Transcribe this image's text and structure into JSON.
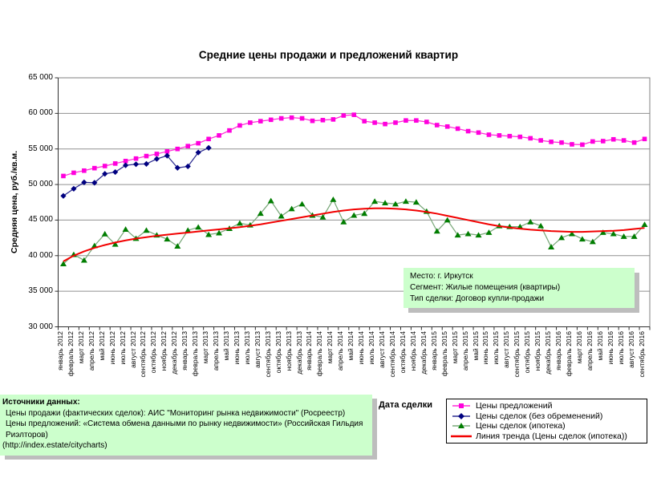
{
  "title": "Средние цены продажи и предложений квартир",
  "colors": {
    "background": "#ffffff",
    "gridline": "#909090",
    "plot_border": "#808080",
    "axis": "#303030",
    "box_fill": "#ccffcc",
    "box_shadow": "#bdbdbd",
    "offers": "#ff00dd",
    "deals_clean": "#000080",
    "deals_mortgage": "#007d00",
    "trend": "#f20000"
  },
  "y_axis": {
    "title": "Средняя цена, руб./кв.м.",
    "ticks": [
      {
        "label": "65 000",
        "value": 65000
      },
      {
        "label": "60 000",
        "value": 60000
      },
      {
        "label": "55 000",
        "value": 55000
      },
      {
        "label": "50 000",
        "value": 50000
      },
      {
        "label": "45 000",
        "value": 45000
      },
      {
        "label": "40 000",
        "value": 40000
      },
      {
        "label": "35 000",
        "value": 35000
      },
      {
        "label": "30 000",
        "value": 30000
      }
    ]
  },
  "x_axis": {
    "title": "Дата сделки"
  },
  "annotation": {
    "lines": [
      "Место: г. Иркутск",
      "Сегмент: Жилые помещения (квартиры)",
      "Тип сделки: Договор купли-продажи"
    ]
  },
  "sources": {
    "heading": "Источники данных:",
    "lines": [
      "Цены продажи (фактических сделок): АИС \"Мониторинг рынка недвижимости\" (Росреестр)",
      "Цены предложений: «Система обмена данными по рынку недвижимости» (Российская Гильдия Риэлторов)",
      "(http://index.estate/citycharts)"
    ]
  },
  "chart_data": {
    "type": "line",
    "title": "Средние цены продажи и предложений квартир",
    "xlabel": "Дата сделки",
    "ylabel": "Средняя цена, руб./кв.м.",
    "ylim": [
      30000,
      65000
    ],
    "grid": true,
    "legend_position": "bottom-right",
    "categories": [
      "январь 2012",
      "февраль 2012",
      "март 2012",
      "апрель 2012",
      "май 2012",
      "июнь 2012",
      "июль 2012",
      "август 2012",
      "сентябрь 2012",
      "октябрь 2012",
      "ноябрь 2012",
      "декабрь 2012",
      "январь 2013",
      "февраль 2013",
      "март 2013",
      "апрель 2013",
      "май 2013",
      "июнь 2013",
      "июль 2013",
      "август 2013",
      "сентябрь 2013",
      "октябрь 2013",
      "ноябрь 2013",
      "декабрь 2013",
      "январь 2014",
      "февраль 2014",
      "март 2014",
      "апрель 2014",
      "май 2014",
      "июнь 2014",
      "июль 2014",
      "август 2014",
      "сентябрь 2014",
      "октябрь 2014",
      "ноябрь 2014",
      "декабрь 2014",
      "январь 2015",
      "февраль 2015",
      "март 2015",
      "апрель 2015",
      "май 2015",
      "июнь 2015",
      "июль 2015",
      "август 2015",
      "сентябрь 2015",
      "октябрь 2015",
      "ноябрь 2015",
      "декабрь 2015",
      "январь 2016",
      "февраль 2016",
      "март 2016",
      "апрель 2016",
      "май 2016",
      "июнь 2016",
      "июль 2016",
      "август 2016",
      "сентябрь 2016"
    ],
    "series": [
      {
        "name": "Цены предложений",
        "marker": "square",
        "color": "#ff00dd",
        "line_color": "#ff2bd6",
        "line_width": 1.25,
        "values": [
          51200,
          51650,
          51950,
          52300,
          52600,
          52950,
          53300,
          53650,
          54000,
          54300,
          54650,
          55000,
          55400,
          55800,
          56400,
          56900,
          57600,
          58300,
          58700,
          58900,
          59100,
          59300,
          59400,
          59300,
          58950,
          59050,
          59150,
          59700,
          59800,
          58900,
          58700,
          58500,
          58700,
          59000,
          59000,
          58800,
          58350,
          58150,
          57850,
          57500,
          57300,
          57000,
          56900,
          56800,
          56700,
          56500,
          56200,
          56000,
          55900,
          55650,
          55600,
          56050,
          56100,
          56350,
          56200,
          55900,
          56400
        ]
      },
      {
        "name": "Цены сделок (без обременений)",
        "marker": "diamond",
        "color": "#000080",
        "line_color": "#2b2b90",
        "line_width": 1.25,
        "values": [
          48400,
          49400,
          50300,
          50250,
          51500,
          51750,
          52700,
          52850,
          52900,
          53600,
          54050,
          52350,
          52550,
          54500,
          55150
        ]
      },
      {
        "name": "Цены сделок (ипотека)",
        "marker": "triangle",
        "color": "#007d00",
        "line_color": "#7aa87a",
        "line_width": 1.25,
        "values": [
          38850,
          40150,
          39350,
          41400,
          43050,
          41590,
          43700,
          42410,
          43560,
          42890,
          42330,
          41330,
          43560,
          44000,
          42960,
          43190,
          43810,
          44560,
          44300,
          45930,
          47700,
          45560,
          46590,
          47260,
          45670,
          45410,
          47890,
          44740,
          45670,
          45925,
          47630,
          47410,
          47260,
          47630,
          47520,
          46220,
          43440,
          45000,
          42890,
          43070,
          42890,
          43260,
          44190,
          44070,
          44070,
          44740,
          44190,
          41220,
          42520,
          43070,
          42330,
          41960,
          43260,
          43070,
          42700,
          42700,
          44370
        ]
      },
      {
        "name": "Линия тренда (Цены сделок (ипотека))",
        "marker": "none",
        "color": "#f20000",
        "line_color": "#f20000",
        "line_width": 2,
        "values": [
          39200,
          40000,
          40600,
          41100,
          41500,
          41850,
          42150,
          42400,
          42600,
          42800,
          42950,
          43100,
          43250,
          43400,
          43550,
          43700,
          43850,
          44000,
          44200,
          44400,
          44650,
          44900,
          45150,
          45400,
          45650,
          45900,
          46150,
          46350,
          46500,
          46600,
          46650,
          46650,
          46600,
          46500,
          46350,
          46150,
          45900,
          45600,
          45300,
          45000,
          44700,
          44400,
          44150,
          43950,
          43800,
          43650,
          43550,
          43450,
          43400,
          43350,
          43350,
          43400,
          43450,
          43500,
          43600,
          43750,
          43900
        ]
      }
    ]
  }
}
